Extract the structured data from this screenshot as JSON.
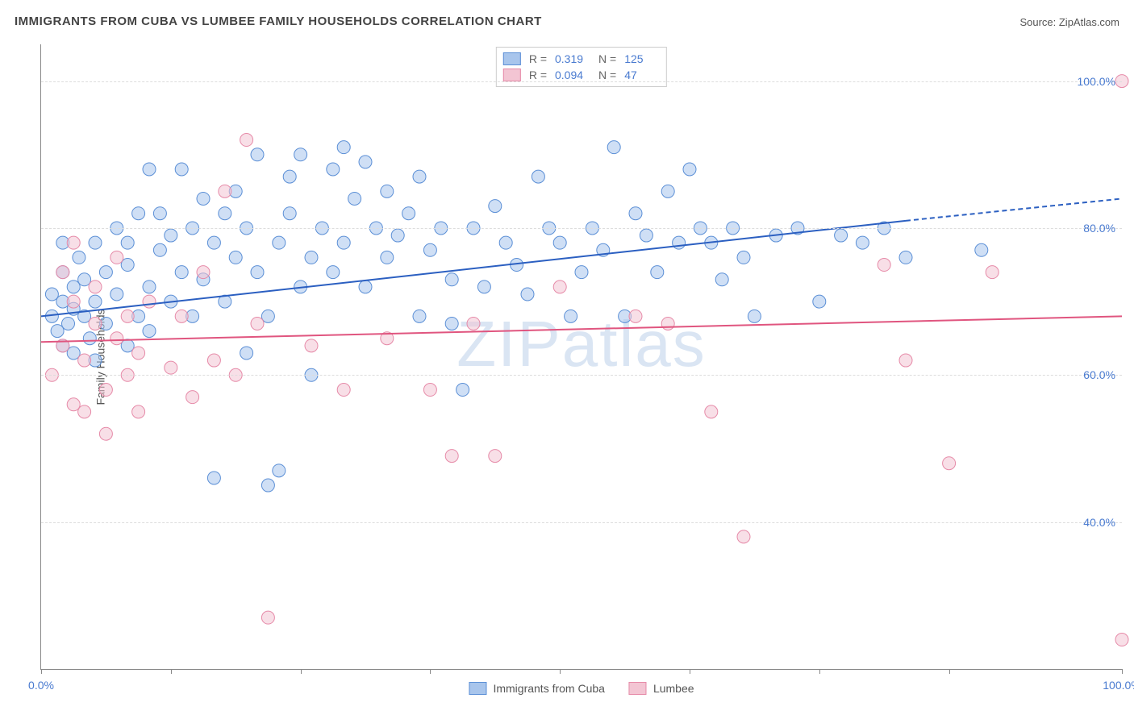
{
  "title": "IMMIGRANTS FROM CUBA VS LUMBEE FAMILY HOUSEHOLDS CORRELATION CHART",
  "source_label": "Source: ",
  "source_name": "ZipAtlas.com",
  "ylabel": "Family Households",
  "watermark": "ZIPatlas",
  "chart": {
    "type": "scatter",
    "xlim": [
      0,
      100
    ],
    "ylim": [
      20,
      105
    ],
    "xtick_positions": [
      0,
      12,
      24,
      36,
      48,
      60,
      72,
      84,
      100
    ],
    "xtick_labels": {
      "0": "0.0%",
      "100": "100.0%"
    },
    "ytick_positions": [
      40,
      60,
      80,
      100
    ],
    "ytick_labels": [
      "40.0%",
      "60.0%",
      "80.0%",
      "100.0%"
    ],
    "grid_color": "#dddddd",
    "background_color": "#ffffff",
    "point_radius": 8,
    "point_opacity": 0.55,
    "series": [
      {
        "name": "Immigrants from Cuba",
        "color_fill": "#a8c5ec",
        "color_stroke": "#5b8fd6",
        "r": 0.319,
        "n": 125,
        "trend": {
          "x1": 0,
          "y1": 68,
          "x2": 80,
          "y2": 81,
          "x2_ext": 100,
          "y2_ext": 84,
          "color": "#2b5fc1",
          "width": 2
        },
        "points": [
          [
            1,
            68
          ],
          [
            1,
            71
          ],
          [
            1.5,
            66
          ],
          [
            2,
            70
          ],
          [
            2,
            74
          ],
          [
            2,
            64
          ],
          [
            2,
            78
          ],
          [
            2.5,
            67
          ],
          [
            3,
            69
          ],
          [
            3,
            72
          ],
          [
            3,
            63
          ],
          [
            3.5,
            76
          ],
          [
            4,
            68
          ],
          [
            4,
            73
          ],
          [
            4.5,
            65
          ],
          [
            5,
            70
          ],
          [
            5,
            78
          ],
          [
            5,
            62
          ],
          [
            6,
            74
          ],
          [
            6,
            67
          ],
          [
            7,
            80
          ],
          [
            7,
            71
          ],
          [
            8,
            78
          ],
          [
            8,
            64
          ],
          [
            8,
            75
          ],
          [
            9,
            68
          ],
          [
            9,
            82
          ],
          [
            10,
            72
          ],
          [
            10,
            66
          ],
          [
            10,
            88
          ],
          [
            11,
            77
          ],
          [
            11,
            82
          ],
          [
            12,
            70
          ],
          [
            12,
            79
          ],
          [
            13,
            74
          ],
          [
            13,
            88
          ],
          [
            14,
            68
          ],
          [
            14,
            80
          ],
          [
            15,
            73
          ],
          [
            15,
            84
          ],
          [
            16,
            78
          ],
          [
            16,
            46
          ],
          [
            17,
            82
          ],
          [
            17,
            70
          ],
          [
            18,
            76
          ],
          [
            18,
            85
          ],
          [
            19,
            63
          ],
          [
            19,
            80
          ],
          [
            20,
            74
          ],
          [
            20,
            90
          ],
          [
            21,
            68
          ],
          [
            21,
            45
          ],
          [
            22,
            78
          ],
          [
            22,
            47
          ],
          [
            23,
            82
          ],
          [
            23,
            87
          ],
          [
            24,
            72
          ],
          [
            24,
            90
          ],
          [
            25,
            76
          ],
          [
            25,
            60
          ],
          [
            26,
            80
          ],
          [
            27,
            74
          ],
          [
            27,
            88
          ],
          [
            28,
            78
          ],
          [
            28,
            91
          ],
          [
            29,
            84
          ],
          [
            30,
            72
          ],
          [
            30,
            89
          ],
          [
            31,
            80
          ],
          [
            32,
            76
          ],
          [
            32,
            85
          ],
          [
            33,
            79
          ],
          [
            34,
            82
          ],
          [
            35,
            68
          ],
          [
            35,
            87
          ],
          [
            36,
            77
          ],
          [
            37,
            80
          ],
          [
            38,
            67
          ],
          [
            38,
            73
          ],
          [
            39,
            58
          ],
          [
            40,
            80
          ],
          [
            41,
            72
          ],
          [
            42,
            83
          ],
          [
            43,
            78
          ],
          [
            44,
            75
          ],
          [
            45,
            71
          ],
          [
            46,
            87
          ],
          [
            47,
            80
          ],
          [
            48,
            78
          ],
          [
            49,
            68
          ],
          [
            50,
            74
          ],
          [
            51,
            80
          ],
          [
            52,
            77
          ],
          [
            53,
            91
          ],
          [
            54,
            68
          ],
          [
            55,
            82
          ],
          [
            56,
            79
          ],
          [
            57,
            74
          ],
          [
            58,
            85
          ],
          [
            59,
            78
          ],
          [
            60,
            88
          ],
          [
            61,
            80
          ],
          [
            62,
            78
          ],
          [
            63,
            73
          ],
          [
            64,
            80
          ],
          [
            65,
            76
          ],
          [
            66,
            68
          ],
          [
            68,
            79
          ],
          [
            70,
            80
          ],
          [
            72,
            70
          ],
          [
            74,
            79
          ],
          [
            76,
            78
          ],
          [
            78,
            80
          ],
          [
            80,
            76
          ],
          [
            87,
            77
          ]
        ]
      },
      {
        "name": "Lumbee",
        "color_fill": "#f3c5d3",
        "color_stroke": "#e68aa8",
        "r": 0.094,
        "n": 47,
        "trend": {
          "x1": 0,
          "y1": 64.5,
          "x2": 100,
          "y2": 68,
          "color": "#e0557f",
          "width": 2
        },
        "points": [
          [
            1,
            60
          ],
          [
            2,
            64
          ],
          [
            2,
            74
          ],
          [
            3,
            56
          ],
          [
            3,
            70
          ],
          [
            3,
            78
          ],
          [
            4,
            62
          ],
          [
            4,
            55
          ],
          [
            5,
            67
          ],
          [
            5,
            72
          ],
          [
            6,
            58
          ],
          [
            6,
            52
          ],
          [
            7,
            65
          ],
          [
            7,
            76
          ],
          [
            8,
            60
          ],
          [
            8,
            68
          ],
          [
            9,
            55
          ],
          [
            9,
            63
          ],
          [
            10,
            70
          ],
          [
            12,
            61
          ],
          [
            13,
            68
          ],
          [
            14,
            57
          ],
          [
            15,
            74
          ],
          [
            16,
            62
          ],
          [
            17,
            85
          ],
          [
            18,
            60
          ],
          [
            19,
            92
          ],
          [
            20,
            67
          ],
          [
            21,
            27
          ],
          [
            25,
            64
          ],
          [
            28,
            58
          ],
          [
            32,
            65
          ],
          [
            36,
            58
          ],
          [
            38,
            49
          ],
          [
            40,
            67
          ],
          [
            42,
            49
          ],
          [
            48,
            72
          ],
          [
            55,
            68
          ],
          [
            58,
            67
          ],
          [
            62,
            55
          ],
          [
            65,
            38
          ],
          [
            78,
            75
          ],
          [
            80,
            62
          ],
          [
            84,
            48
          ],
          [
            88,
            74
          ],
          [
            100,
            100
          ],
          [
            100,
            24
          ]
        ]
      }
    ],
    "legend_bottom": [
      {
        "label": "Immigrants from Cuba",
        "fill": "#a8c5ec",
        "stroke": "#5b8fd6"
      },
      {
        "label": "Lumbee",
        "fill": "#f3c5d3",
        "stroke": "#e68aa8"
      }
    ]
  }
}
